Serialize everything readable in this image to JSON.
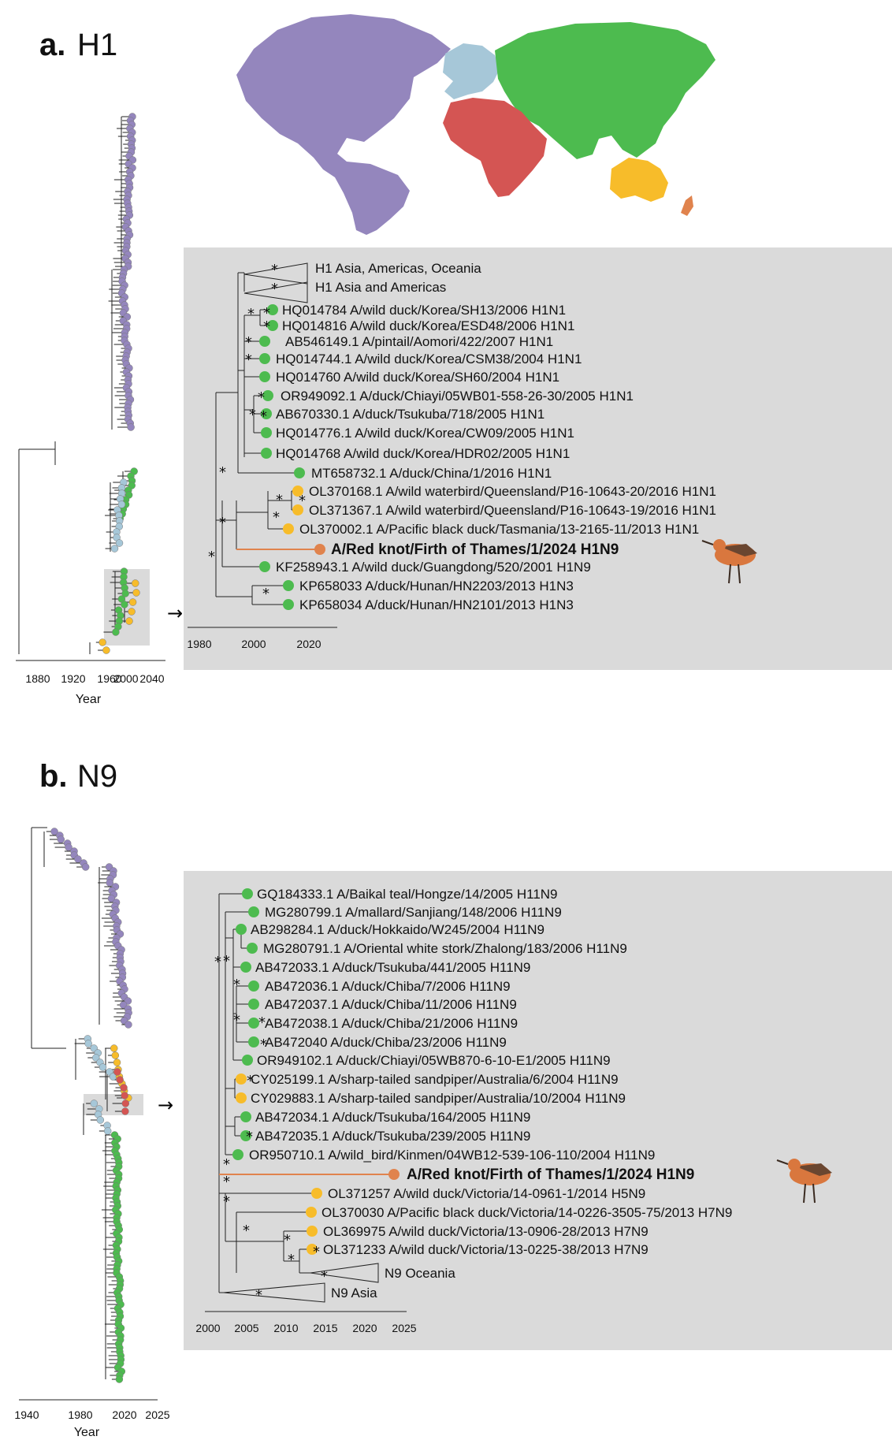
{
  "colors": {
    "americas": "#9486bd",
    "europe": "#a6c7d8",
    "asia": "#4dbb4f",
    "africa": "#d45553",
    "oceania": "#f7bc2a",
    "new_zealand": "#e0834d",
    "inset_background": "#dadada",
    "highlight_branch": "#e0834d"
  },
  "panel_a": {
    "letter": "a.",
    "gene": "H1",
    "overview_axis": {
      "ticks": [
        "1880",
        "1920",
        "1960",
        "2000",
        "2040"
      ],
      "title": "Year"
    },
    "inset_axis": {
      "ticks": [
        "1980",
        "2000",
        "2020"
      ]
    },
    "collapsed_clades": [
      {
        "label": "H1 Asia, Americas, Oceania"
      },
      {
        "label": "H1 Asia and Americas"
      }
    ],
    "tips": [
      {
        "label": "HQ014784 A/wild duck/Korea/SH13/2006 H1N1",
        "region": "asia"
      },
      {
        "label": "HQ014816 A/wild duck/Korea/ESD48/2006 H1N1",
        "region": "asia"
      },
      {
        "label": "AB546149.1 A/pintail/Aomori/422/2007 H1N1",
        "region": "asia"
      },
      {
        "label": "HQ014744.1 A/wild duck/Korea/CSM38/2004 H1N1",
        "region": "asia"
      },
      {
        "label": "HQ014760 A/wild duck/Korea/SH60/2004 H1N1",
        "region": "asia"
      },
      {
        "label": "OR949092.1 A/duck/Chiayi/05WB01-558-26-30/2005 H1N1",
        "region": "asia"
      },
      {
        "label": "AB670330.1 A/duck/Tsukuba/718/2005 H1N1",
        "region": "asia"
      },
      {
        "label": "HQ014776.1 A/wild duck/Korea/CW09/2005 H1N1",
        "region": "asia"
      },
      {
        "label": "HQ014768 A/wild duck/Korea/HDR02/2005 H1N1",
        "region": "asia"
      },
      {
        "label": "MT658732.1 A/duck/China/1/2016 H1N1",
        "region": "asia"
      },
      {
        "label": "OL370168.1 A/wild waterbird/Queensland/P16-10643-20/2016 H1N1",
        "region": "oceania"
      },
      {
        "label": "OL371367.1 A/wild waterbird/Queensland/P16-10643-19/2016 H1N1",
        "region": "oceania"
      },
      {
        "label": "OL370002.1 A/Pacific black duck/Tasmania/13-2165-11/2013 H1N1",
        "region": "oceania"
      },
      {
        "label": "A/Red knot/Firth of Thames/1/2024 H1N9",
        "region": "new_zealand"
      },
      {
        "label": "KF258943.1 A/wild duck/Guangdong/520/2001 H1N9",
        "region": "asia"
      },
      {
        "label": "KP658033 A/duck/Hunan/HN2203/2013 H1N3",
        "region": "asia"
      },
      {
        "label": "KP658034 A/duck/Hunan/HN2101/2013 H1N3",
        "region": "asia"
      }
    ],
    "support_marker": "*"
  },
  "panel_b": {
    "letter": "b.",
    "gene": "N9",
    "overview_axis": {
      "ticks": [
        "1940",
        "1980",
        "2020",
        "2025"
      ],
      "title": "Year"
    },
    "inset_axis": {
      "ticks": [
        "2000",
        "2005",
        "2010",
        "2015",
        "2020",
        "2025"
      ]
    },
    "collapsed_clades": [
      {
        "label": "N9 Oceania"
      },
      {
        "label": "N9 Asia"
      }
    ],
    "tips": [
      {
        "label": "GQ184333.1 A/Baikal teal/Hongze/14/2005 H11N9",
        "region": "asia"
      },
      {
        "label": "MG280799.1 A/mallard/Sanjiang/148/2006 H11N9",
        "region": "asia"
      },
      {
        "label": "AB298284.1 A/duck/Hokkaido/W245/2004 H11N9",
        "region": "asia"
      },
      {
        "label": "MG280791.1 A/Oriental white stork/Zhalong/183/2006 H11N9",
        "region": "asia"
      },
      {
        "label": "AB472033.1 A/duck/Tsukuba/441/2005 H11N9",
        "region": "asia"
      },
      {
        "label": "AB472036.1 A/duck/Chiba/7/2006 H11N9",
        "region": "asia"
      },
      {
        "label": "AB472037.1 A/duck/Chiba/11/2006 H11N9",
        "region": "asia"
      },
      {
        "label": "AB472038.1 A/duck/Chiba/21/2006 H11N9",
        "region": "asia"
      },
      {
        "label": "AB472040 A/duck/Chiba/23/2006 H11N9",
        "region": "asia"
      },
      {
        "label": "OR949102.1 A/duck/Chiayi/05WB870-6-10-E1/2005 H11N9",
        "region": "asia"
      },
      {
        "label": "CY025199.1 A/sharp-tailed sandpiper/Australia/6/2004 H11N9",
        "region": "oceania"
      },
      {
        "label": "CY029883.1 A/sharp-tailed sandpiper/Australia/10/2004 H11N9",
        "region": "oceania"
      },
      {
        "label": "AB472034.1 A/duck/Tsukuba/164/2005 H11N9",
        "region": "asia"
      },
      {
        "label": "AB472035.1 A/duck/Tsukuba/239/2005 H11N9",
        "region": "asia"
      },
      {
        "label": "OR950710.1 A/wild_bird/Kinmen/04WB12-539-106-110/2004 H11N9",
        "region": "asia"
      },
      {
        "label": "A/Red knot/Firth of Thames/1/2024 H1N9",
        "region": "new_zealand"
      },
      {
        "label": "OL371257 A/wild duck/Victoria/14-0961-1/2014 H5N9",
        "region": "oceania"
      },
      {
        "label": "OL370030 A/Pacific black duck/Victoria/14-0226-3505-75/2013 H7N9",
        "region": "oceania"
      },
      {
        "label": "OL369975 A/wild duck/Victoria/13-0906-28/2013 H7N9",
        "region": "oceania"
      },
      {
        "label": "OL371233 A/wild duck/Victoria/13-0225-38/2013 H7N9",
        "region": "oceania"
      }
    ],
    "support_marker": "*"
  },
  "arrow_glyph": "→"
}
